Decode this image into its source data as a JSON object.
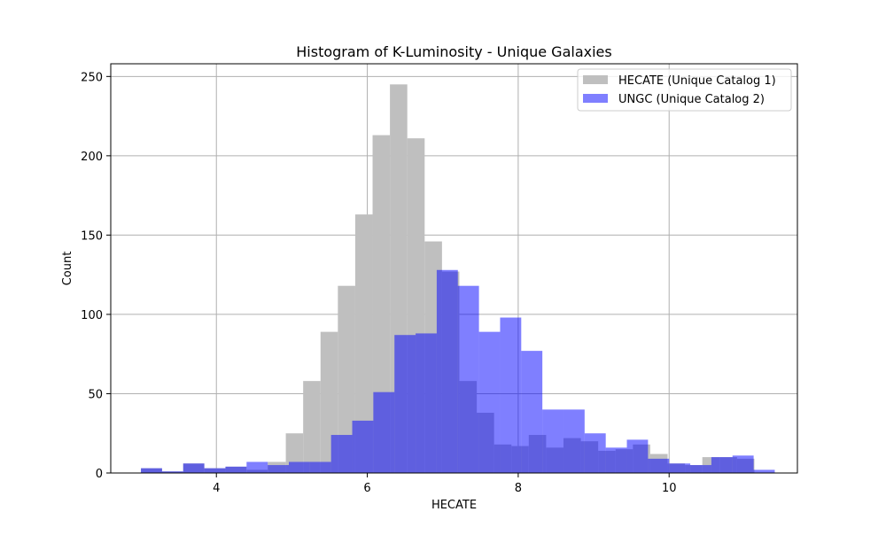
{
  "chart_data": {
    "type": "bar",
    "title": "Histogram of K-Luminosity - Unique Galaxies",
    "xlabel": "HECATE",
    "ylabel": "Count",
    "xlim": [
      2.6,
      11.7
    ],
    "ylim": [
      0,
      258
    ],
    "xticks": [
      4,
      6,
      8,
      10
    ],
    "yticks": [
      0,
      50,
      100,
      150,
      200,
      250
    ],
    "grid": true,
    "legend_position": "top-right",
    "series": [
      {
        "name": "HECATE (Unique Catalog 1)",
        "color": "#bfbfbf",
        "opacity": 1,
        "bins": [
          {
            "x0": 3.0,
            "x1": 3.28,
            "count": 3
          },
          {
            "x0": 3.28,
            "x1": 3.56,
            "count": 1
          },
          {
            "x0": 3.56,
            "x1": 3.84,
            "count": 6
          },
          {
            "x0": 3.84,
            "x1": 4.12,
            "count": 3
          },
          {
            "x0": 4.12,
            "x1": 4.4,
            "count": 4
          },
          {
            "x0": 4.4,
            "x1": 4.68,
            "count": 2
          },
          {
            "x0": 4.68,
            "x1": 4.92,
            "count": 7
          },
          {
            "x0": 4.92,
            "x1": 5.15,
            "count": 25
          },
          {
            "x0": 5.15,
            "x1": 5.38,
            "count": 58
          },
          {
            "x0": 5.38,
            "x1": 5.61,
            "count": 89
          },
          {
            "x0": 5.61,
            "x1": 5.84,
            "count": 118
          },
          {
            "x0": 5.84,
            "x1": 6.07,
            "count": 163
          },
          {
            "x0": 6.07,
            "x1": 6.3,
            "count": 213
          },
          {
            "x0": 6.3,
            "x1": 6.53,
            "count": 245
          },
          {
            "x0": 6.53,
            "x1": 6.76,
            "count": 211
          },
          {
            "x0": 6.76,
            "x1": 6.99,
            "count": 146
          },
          {
            "x0": 6.99,
            "x1": 7.22,
            "count": 127
          },
          {
            "x0": 7.22,
            "x1": 7.45,
            "count": 58
          },
          {
            "x0": 7.45,
            "x1": 7.68,
            "count": 38
          },
          {
            "x0": 7.68,
            "x1": 7.91,
            "count": 18
          },
          {
            "x0": 7.91,
            "x1": 8.14,
            "count": 17
          },
          {
            "x0": 8.14,
            "x1": 8.37,
            "count": 24
          },
          {
            "x0": 8.37,
            "x1": 8.6,
            "count": 16
          },
          {
            "x0": 8.6,
            "x1": 8.83,
            "count": 22
          },
          {
            "x0": 8.83,
            "x1": 9.06,
            "count": 20
          },
          {
            "x0": 9.06,
            "x1": 9.29,
            "count": 14
          },
          {
            "x0": 9.29,
            "x1": 9.52,
            "count": 15
          },
          {
            "x0": 9.52,
            "x1": 9.75,
            "count": 18
          },
          {
            "x0": 9.75,
            "x1": 9.98,
            "count": 12
          },
          {
            "x0": 9.98,
            "x1": 10.21,
            "count": 6
          },
          {
            "x0": 10.21,
            "x1": 10.44,
            "count": 5
          },
          {
            "x0": 10.44,
            "x1": 10.67,
            "count": 10
          },
          {
            "x0": 10.67,
            "x1": 10.9,
            "count": 10
          },
          {
            "x0": 10.9,
            "x1": 11.13,
            "count": 9
          }
        ]
      },
      {
        "name": "UNGC (Unique Catalog 2)",
        "color": "#0000ff",
        "opacity": 0.5,
        "bins": [
          {
            "x0": 3.0,
            "x1": 3.28,
            "count": 3
          },
          {
            "x0": 3.28,
            "x1": 3.56,
            "count": 1
          },
          {
            "x0": 3.56,
            "x1": 3.84,
            "count": 6
          },
          {
            "x0": 3.84,
            "x1": 4.12,
            "count": 3
          },
          {
            "x0": 4.12,
            "x1": 4.4,
            "count": 4
          },
          {
            "x0": 4.4,
            "x1": 4.68,
            "count": 7
          },
          {
            "x0": 4.68,
            "x1": 4.96,
            "count": 5
          },
          {
            "x0": 4.96,
            "x1": 5.24,
            "count": 7
          },
          {
            "x0": 5.24,
            "x1": 5.52,
            "count": 7
          },
          {
            "x0": 5.52,
            "x1": 5.8,
            "count": 24
          },
          {
            "x0": 5.8,
            "x1": 6.08,
            "count": 33
          },
          {
            "x0": 6.08,
            "x1": 6.36,
            "count": 51
          },
          {
            "x0": 6.36,
            "x1": 6.64,
            "count": 87
          },
          {
            "x0": 6.64,
            "x1": 6.92,
            "count": 88
          },
          {
            "x0": 6.92,
            "x1": 7.2,
            "count": 128
          },
          {
            "x0": 7.2,
            "x1": 7.48,
            "count": 118
          },
          {
            "x0": 7.48,
            "x1": 7.76,
            "count": 89
          },
          {
            "x0": 7.76,
            "x1": 8.04,
            "count": 98
          },
          {
            "x0": 8.04,
            "x1": 8.32,
            "count": 77
          },
          {
            "x0": 8.32,
            "x1": 8.6,
            "count": 40
          },
          {
            "x0": 8.6,
            "x1": 8.88,
            "count": 40
          },
          {
            "x0": 8.88,
            "x1": 9.16,
            "count": 25
          },
          {
            "x0": 9.16,
            "x1": 9.44,
            "count": 16
          },
          {
            "x0": 9.44,
            "x1": 9.72,
            "count": 21
          },
          {
            "x0": 9.72,
            "x1": 10.0,
            "count": 9
          },
          {
            "x0": 10.0,
            "x1": 10.28,
            "count": 6
          },
          {
            "x0": 10.28,
            "x1": 10.56,
            "count": 5
          },
          {
            "x0": 10.56,
            "x1": 10.84,
            "count": 10
          },
          {
            "x0": 10.84,
            "x1": 11.12,
            "count": 11
          },
          {
            "x0": 11.12,
            "x1": 11.4,
            "count": 2
          }
        ]
      }
    ]
  }
}
